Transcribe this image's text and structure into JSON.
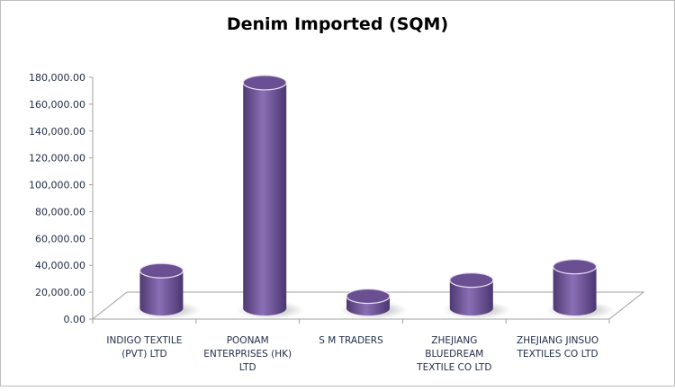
{
  "chart_data": {
    "type": "bar",
    "style": "3d-cylinder",
    "title": "Denim Imported (SQM)",
    "xlabel": "",
    "ylabel": "",
    "ylim": [
      0,
      180000
    ],
    "yticks": [
      "0.00",
      "20,000.00",
      "40,000.00",
      "60,000.00",
      "80,000.00",
      "100,000.00",
      "120,000.00",
      "140,000.00",
      "160,000.00",
      "180,000.00"
    ],
    "categories": [
      [
        "INDIGO TEXTILE",
        "(PVT) LTD"
      ],
      [
        "POONAM",
        "ENTERPRISES  (HK)",
        "LTD"
      ],
      [
        "S M TRADERS"
      ],
      [
        "ZHEJIANG",
        "BLUEDREAM",
        "TEXTILE CO LTD"
      ],
      [
        "ZHEJIANG JINSUO",
        "TEXTILES CO LTD"
      ]
    ],
    "values": [
      28000,
      168000,
      9000,
      21000,
      31000
    ],
    "grid": false,
    "legend": "none",
    "colors": {
      "bar": "#7f64a8",
      "bar_dark": "#4e3a72",
      "bar_top": "#6a5093",
      "axis": "#a0a0a0",
      "text": "#1f2a44"
    }
  }
}
